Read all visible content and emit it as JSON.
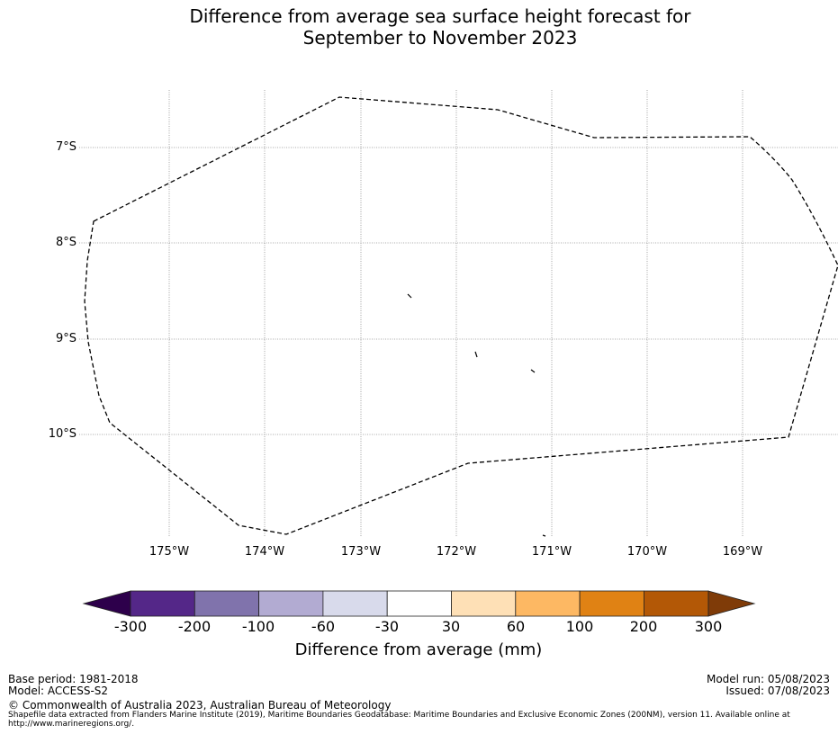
{
  "title": {
    "line1": "Difference from average sea surface height forecast for",
    "line2": "September to November 2023"
  },
  "map": {
    "lat_labels": [
      "7°S",
      "8°S",
      "9°S",
      "10°S"
    ],
    "lon_labels": [
      "175°W",
      "174°W",
      "173°W",
      "172°W",
      "171°W",
      "170°W",
      "169°W"
    ],
    "boundary_style": "dashed",
    "boundary_color": "#000000",
    "grid_color": "#8c8c8c"
  },
  "colorbar": {
    "label": "Difference from average (mm)",
    "ticks": [
      "-300",
      "-200",
      "-100",
      "-60",
      "-30",
      "30",
      "60",
      "100",
      "200",
      "300"
    ],
    "under_color": "#2d004b",
    "over_color": "#7f3b08",
    "colors": [
      "#542788",
      "#8073ac",
      "#b2abd2",
      "#d8daeb",
      "#ffffff",
      "#fee0b6",
      "#fdb863",
      "#e08214",
      "#b35806"
    ]
  },
  "footer": {
    "base_period": "Base period: 1981-2018",
    "model": "Model: ACCESS-S2",
    "model_run": "Model run: 05/08/2023",
    "issued": "Issued: 07/08/2023",
    "copyright": "© Commonwealth of Australia 2023, Australian Bureau of Meteorology",
    "shapefile_note": "Shapefile data extracted from Flanders Marine Institute (2019), Maritime Boundaries Geodatabase: Maritime Boundaries and Exclusive Economic Zones (200NM), version 11. Available online at http://www.marineregions.org/."
  }
}
